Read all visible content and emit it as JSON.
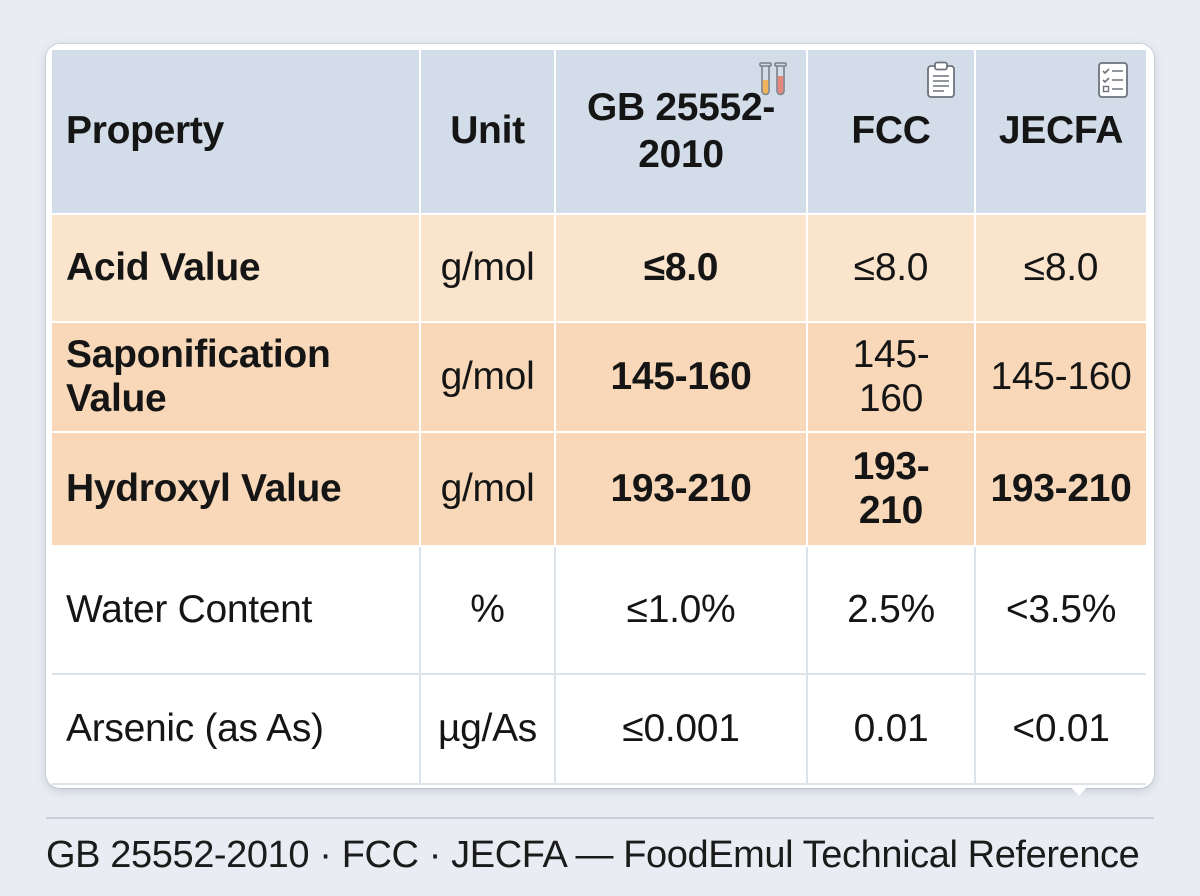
{
  "table": {
    "headers": {
      "property": "Property",
      "unit": "Unit",
      "gb": "GB 25552-2010",
      "fcc": "FCC",
      "jecfa": "JECFA"
    },
    "header_icons": {
      "gb": "test-tubes-icon",
      "fcc": "clipboard-icon",
      "jecfa": "checklist-icon"
    },
    "rows": [
      {
        "property": "Acid Value",
        "unit": "g/mol",
        "gb": "≤8.0",
        "fcc": "≤8.0",
        "jecfa": "≤8.0"
      },
      {
        "property": "Saponification Value",
        "unit": "g/mol",
        "gb": "145-160",
        "fcc": "145-160",
        "jecfa": "145-160"
      },
      {
        "property": "Hydroxyl Value",
        "unit": "g/mol",
        "gb": "193-210",
        "fcc": "193-210",
        "jecfa": "193-210"
      },
      {
        "property": "Water Content",
        "unit": "%",
        "gb": "≤1.0%",
        "fcc": "2.5%",
        "jecfa": "<3.5%"
      },
      {
        "property": "Arsenic (as As)",
        "unit": "µg/As",
        "gb": "≤0.001",
        "fcc": "0.01",
        "jecfa": "<0.01"
      }
    ]
  },
  "caption": "GB 25552-2010 · FCC · JECFA — FoodEmul Technical Reference",
  "colors": {
    "header_bg": "#d3dde9",
    "highlight_row_light": "#fbe4cc",
    "highlight_row": "#f8d8b8",
    "page_bg": "#e9edf3",
    "card_bg": "#ffffff"
  }
}
